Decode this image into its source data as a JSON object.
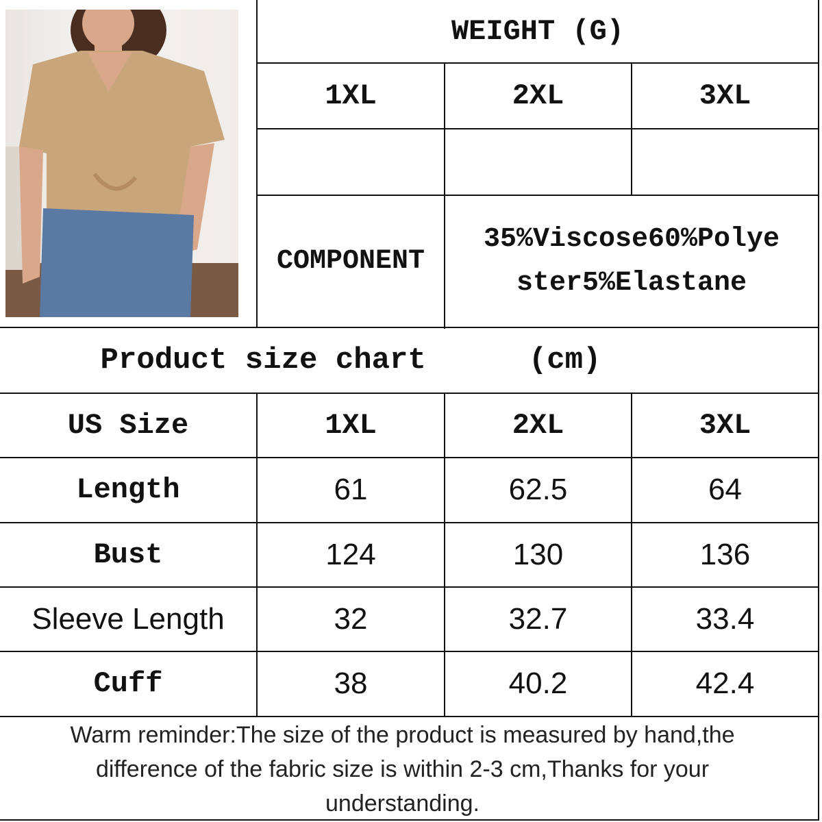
{
  "weight": {
    "title": "WEIGHT (G)",
    "sizes": [
      "1XL",
      "2XL",
      "3XL"
    ],
    "values": [
      "",
      "",
      ""
    ]
  },
  "component": {
    "label": "COMPONENT",
    "value_line1": "35%Viscose60%Polye",
    "value_line2": "ster5%Elastane"
  },
  "size_chart": {
    "title": "Product size chart",
    "unit": "(cm)",
    "header": [
      "US Size",
      "1XL",
      "2XL",
      "3XL"
    ],
    "rows": [
      {
        "label": "Length",
        "values": [
          "61",
          "62.5",
          "64"
        ]
      },
      {
        "label": "Bust",
        "values": [
          "124",
          "130",
          "136"
        ]
      },
      {
        "label": "Sleeve Length",
        "values": [
          "32",
          "32.7",
          "33.4"
        ]
      },
      {
        "label": "Cuff",
        "values": [
          "38",
          "40.2",
          "42.4"
        ]
      }
    ]
  },
  "reminder": {
    "line1": "Warm reminder:The size of the product is measured by hand,the",
    "line2": "difference of the fabric size is within 2-3 cm,Thanks for your",
    "line3": "understanding."
  },
  "colors": {
    "shirt": "#c9a57c",
    "jeans": "#5b7aa3",
    "skin": "#d9a88a",
    "hair": "#4a2e22"
  }
}
